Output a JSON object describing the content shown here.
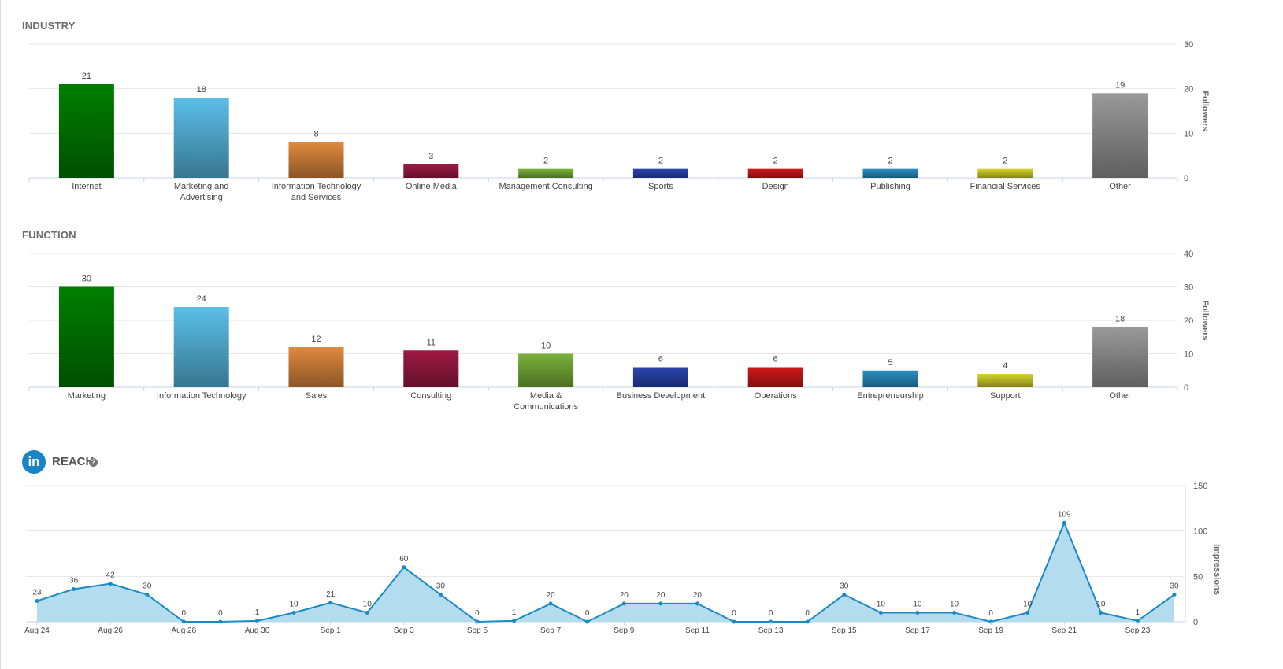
{
  "chart_data": [
    {
      "type": "bar",
      "title": "INDUSTRY",
      "ylabel": "Followers",
      "ylim": [
        0,
        30
      ],
      "yticks": [
        0,
        10,
        20,
        30
      ],
      "grid": true,
      "categories": [
        "Internet",
        "Marketing and Advertising",
        "Information Technology and Services",
        "Online Media",
        "Management Consulting",
        "Sports",
        "Design",
        "Publishing",
        "Financial Services",
        "Other"
      ],
      "category_lines": [
        [
          "Internet"
        ],
        [
          "Marketing and",
          "Advertising"
        ],
        [
          "Information Technology",
          "and Services"
        ],
        [
          "Online Media"
        ],
        [
          "Management Consulting"
        ],
        [
          "Sports"
        ],
        [
          "Design"
        ],
        [
          "Publishing"
        ],
        [
          "Financial Services"
        ],
        [
          "Other"
        ]
      ],
      "values": [
        21,
        18,
        8,
        3,
        2,
        2,
        2,
        2,
        2,
        19
      ],
      "colors": [
        "#007f00",
        "#5bbfe8",
        "#e08a3e",
        "#9e1a45",
        "#7ab33a",
        "#2a45b0",
        "#d01818",
        "#2a8fc3",
        "#d4d42a",
        "#9a9a9a"
      ]
    },
    {
      "type": "bar",
      "title": "FUNCTION",
      "ylabel": "Followers",
      "ylim": [
        0,
        40
      ],
      "yticks": [
        0,
        10,
        20,
        30,
        40
      ],
      "grid": true,
      "categories": [
        "Marketing",
        "Information Technology",
        "Sales",
        "Consulting",
        "Media & Communications",
        "Business Development",
        "Operations",
        "Entrepreneurship",
        "Support",
        "Other"
      ],
      "category_lines": [
        [
          "Marketing"
        ],
        [
          "Information Technology"
        ],
        [
          "Sales"
        ],
        [
          "Consulting"
        ],
        [
          "Media &",
          "Communications"
        ],
        [
          "Business Development"
        ],
        [
          "Operations"
        ],
        [
          "Entrepreneurship"
        ],
        [
          "Support"
        ],
        [
          "Other"
        ]
      ],
      "values": [
        30,
        24,
        12,
        11,
        10,
        6,
        6,
        5,
        4,
        18
      ],
      "colors": [
        "#007f00",
        "#5bbfe8",
        "#e08a3e",
        "#9e1a45",
        "#7ab33a",
        "#2a45b0",
        "#d01818",
        "#2a8fc3",
        "#d4d42a",
        "#9a9a9a"
      ]
    },
    {
      "type": "area",
      "title": "REACH",
      "ylabel": "Impressions",
      "ylim": [
        0,
        150
      ],
      "yticks": [
        0,
        50,
        100,
        150
      ],
      "grid": true,
      "x": [
        "Aug 24",
        "Aug 25",
        "Aug 26",
        "Aug 27",
        "Aug 28",
        "Aug 29",
        "Aug 30",
        "Aug 31",
        "Sep 1",
        "Sep 2",
        "Sep 3",
        "Sep 4",
        "Sep 5",
        "Sep 6",
        "Sep 7",
        "Sep 8",
        "Sep 9",
        "Sep 10",
        "Sep 11",
        "Sep 12",
        "Sep 13",
        "Sep 14",
        "Sep 15",
        "Sep 16",
        "Sep 17",
        "Sep 18",
        "Sep 19",
        "Sep 20",
        "Sep 21",
        "Sep 22",
        "Sep 23",
        "Sep 24"
      ],
      "x_tick_labels": [
        "Aug 24",
        "Aug 26",
        "Aug 28",
        "Aug 30",
        "Sep 1",
        "Sep 3",
        "Sep 5",
        "Sep 7",
        "Sep 9",
        "Sep 11",
        "Sep 13",
        "Sep 15",
        "Sep 17",
        "Sep 19",
        "Sep 21",
        "Sep 23"
      ],
      "values": [
        23,
        36,
        42,
        30,
        0,
        0,
        1,
        10,
        21,
        10,
        60,
        30,
        0,
        1,
        20,
        0,
        20,
        20,
        20,
        0,
        0,
        0,
        30,
        10,
        10,
        10,
        0,
        10,
        109,
        10,
        1,
        30
      ],
      "line_color": "#1a8ac7",
      "fill_color": "#b3dcef"
    }
  ],
  "reach": {
    "title": "REACH",
    "help": "?",
    "brand_icon_text": "in"
  }
}
